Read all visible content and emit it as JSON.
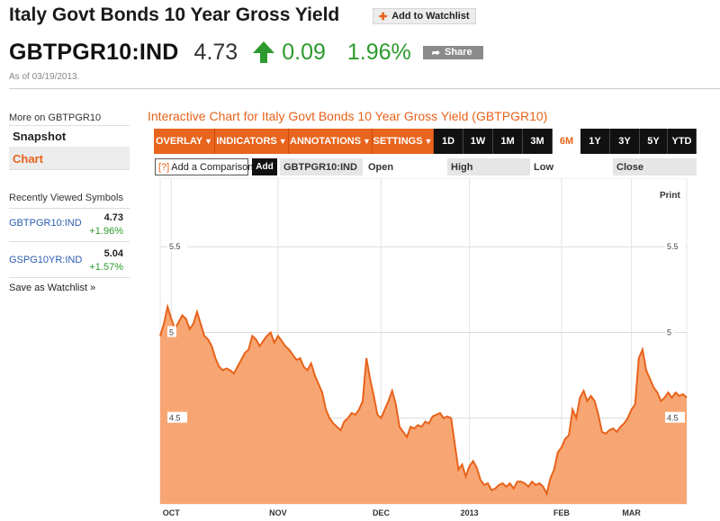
{
  "header": {
    "title": "Italy Govt Bonds 10 Year Gross Yield",
    "watchlist_label": "Add to Watchlist",
    "ticker": "GBTPGR10:IND",
    "price": "4.73",
    "change": "0.09",
    "change_pct": "1.96%",
    "share_label": "Share",
    "as_of": "As of 03/19/2013."
  },
  "sidebar": {
    "more_on": "More on GBTPGR10",
    "snapshot": "Snapshot",
    "chart": "Chart",
    "recently_viewed": "Recently Viewed Symbols",
    "symbols": [
      {
        "name": "GBTPGR10:IND",
        "value": "4.73",
        "change": "+1.96%"
      },
      {
        "name": "GSPG10YR:IND",
        "value": "5.04",
        "change": "+1.57%"
      }
    ],
    "save_watchlist": "Save as Watchlist »"
  },
  "chart_panel": {
    "title": "Interactive Chart for Italy Govt Bonds 10 Year Gross Yield (GBTPGR10)",
    "menus": [
      "OVERLAY",
      "INDICATORS",
      "ANNOTATIONS",
      "SETTINGS"
    ],
    "ranges": [
      "1D",
      "1W",
      "1M",
      "3M",
      "6M",
      "1Y",
      "3Y",
      "5Y",
      "YTD"
    ],
    "selected_range": "6M",
    "comparison_help": "[?]",
    "comparison_label": "Add a Comparison",
    "add_label": "Add",
    "symbol_cell": "GBTPGR10:IND",
    "cols": [
      "Open",
      "High",
      "Low",
      "Close"
    ],
    "print_label": "Print"
  },
  "colors": {
    "accent": "#e8621a",
    "positive": "#2c9a2c",
    "area_fill": "#f7a673",
    "line": "#e8621a"
  },
  "chart_data": {
    "type": "area",
    "x_labels": [
      "OCT",
      "NOV",
      "DEC",
      "2013",
      "FEB",
      "MAR"
    ],
    "y_ticks": [
      4.5,
      5,
      5.5
    ],
    "ylim": [
      4.0,
      5.9
    ],
    "grid": true,
    "values": [
      4.98,
      5.05,
      5.15,
      5.08,
      5.02,
      5.06,
      5.1,
      5.08,
      5.02,
      5.05,
      5.12,
      5.05,
      4.98,
      4.96,
      4.92,
      4.85,
      4.8,
      4.78,
      4.79,
      4.78,
      4.76,
      4.8,
      4.84,
      4.88,
      4.9,
      4.98,
      4.96,
      4.92,
      4.95,
      4.98,
      5.0,
      4.94,
      4.98,
      4.95,
      4.92,
      4.9,
      4.87,
      4.84,
      4.85,
      4.8,
      4.78,
      4.82,
      4.75,
      4.7,
      4.65,
      4.55,
      4.5,
      4.47,
      4.45,
      4.43,
      4.48,
      4.5,
      4.53,
      4.52,
      4.55,
      4.6,
      4.85,
      4.73,
      4.63,
      4.52,
      4.5,
      4.55,
      4.6,
      4.66,
      4.58,
      4.45,
      4.42,
      4.39,
      4.45,
      4.44,
      4.46,
      4.45,
      4.48,
      4.47,
      4.51,
      4.52,
      4.53,
      4.5,
      4.51,
      4.5,
      4.35,
      4.2,
      4.23,
      4.16,
      4.22,
      4.25,
      4.21,
      4.14,
      4.11,
      4.12,
      4.08,
      4.09,
      4.11,
      4.12,
      4.1,
      4.12,
      4.09,
      4.13,
      4.13,
      4.12,
      4.1,
      4.13,
      4.11,
      4.12,
      4.1,
      4.06,
      4.15,
      4.2,
      4.3,
      4.33,
      4.38,
      4.4,
      4.55,
      4.5,
      4.62,
      4.66,
      4.6,
      4.63,
      4.6,
      4.52,
      4.42,
      4.41,
      4.43,
      4.44,
      4.42,
      4.45,
      4.47,
      4.5,
      4.55,
      4.58,
      4.85,
      4.9,
      4.78,
      4.73,
      4.68,
      4.65,
      4.6,
      4.62,
      4.65,
      4.62,
      4.65,
      4.63,
      4.64,
      4.62
    ],
    "tick_index": [
      3,
      32,
      60,
      84,
      109,
      128
    ]
  }
}
